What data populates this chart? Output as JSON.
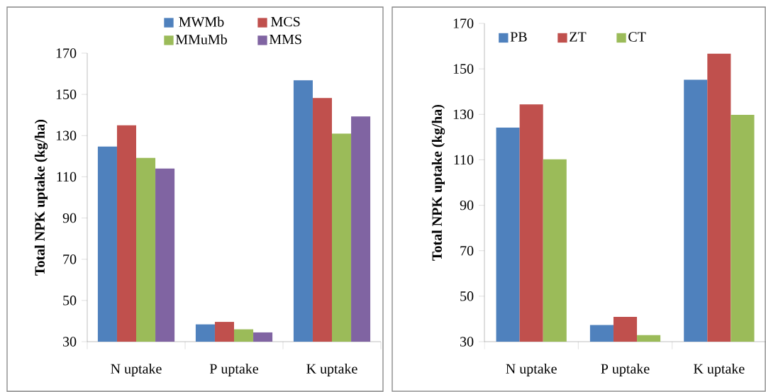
{
  "chart_data": [
    {
      "type": "bar",
      "ylabel": "Total NPK uptake (kg/ha)",
      "categories": [
        "N uptake",
        "P uptake",
        "K uptake"
      ],
      "ylim": [
        30,
        170
      ],
      "yticks": [
        30,
        50,
        70,
        90,
        110,
        130,
        150,
        170
      ],
      "legend": "top",
      "series": [
        {
          "name": "MWMb",
          "color": "#4f81bd",
          "values": [
            124.7,
            38.4,
            156.8
          ]
        },
        {
          "name": "MCS",
          "color": "#c0504d",
          "values": [
            135,
            39.6,
            148.2
          ]
        },
        {
          "name": "MMuMb",
          "color": "#9bbb59",
          "values": [
            119.2,
            36,
            131
          ]
        },
        {
          "name": "MMS",
          "color": "#8064a2",
          "values": [
            114,
            34.5,
            139.3
          ]
        }
      ]
    },
    {
      "type": "bar",
      "ylabel": "Total NPK uptake (kg/ha)",
      "categories": [
        "N uptake",
        "P uptake",
        "K uptake"
      ],
      "ylim": [
        30,
        170
      ],
      "yticks": [
        30,
        50,
        70,
        90,
        110,
        130,
        150,
        170
      ],
      "legend": "top left",
      "series": [
        {
          "name": "PB",
          "color": "#4f81bd",
          "values": [
            124.2,
            37.3,
            145.2
          ]
        },
        {
          "name": "ZT",
          "color": "#c0504d",
          "values": [
            134.4,
            40.9,
            156.7
          ]
        },
        {
          "name": "CT",
          "color": "#9bbb59",
          "values": [
            110.2,
            32.9,
            129.8
          ]
        }
      ]
    }
  ]
}
